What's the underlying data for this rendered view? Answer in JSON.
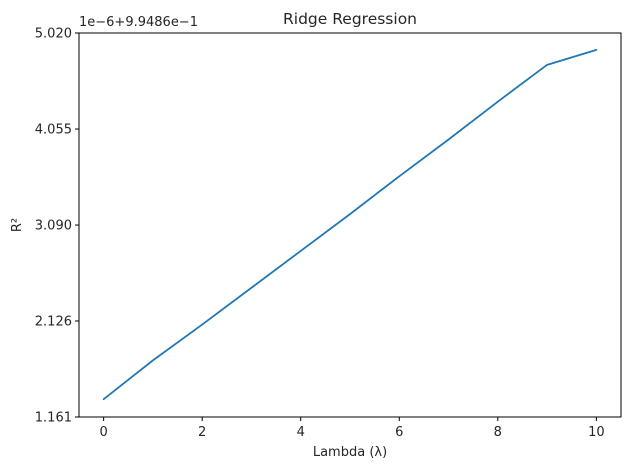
{
  "chart_data": {
    "type": "line",
    "title": "Ridge Regression",
    "xlabel": "Lambda (λ)",
    "ylabel": "R²",
    "offset_text": "1e−6+9.9486e−1",
    "xlim": [
      -0.5,
      10.5
    ],
    "ylim": [
      1.161,
      5.02
    ],
    "x_ticks": [
      0,
      2,
      4,
      6,
      8,
      10
    ],
    "x_tick_labels": [
      "0",
      "2",
      "4",
      "6",
      "8",
      "10"
    ],
    "y_ticks": [
      1.161,
      2.126,
      3.09,
      4.055,
      5.02
    ],
    "y_tick_labels": [
      "1.161",
      "2.126",
      "3.090",
      "4.055",
      "5.020"
    ],
    "grid": false,
    "line_color": "#1f77b4",
    "series": [
      {
        "x": [
          0,
          1,
          2,
          3,
          4,
          5,
          6,
          7,
          8,
          9,
          10
        ],
        "y": [
          1.34,
          1.73,
          2.09,
          2.46,
          2.83,
          3.2,
          3.58,
          3.95,
          4.33,
          4.7,
          4.85
        ]
      }
    ]
  }
}
